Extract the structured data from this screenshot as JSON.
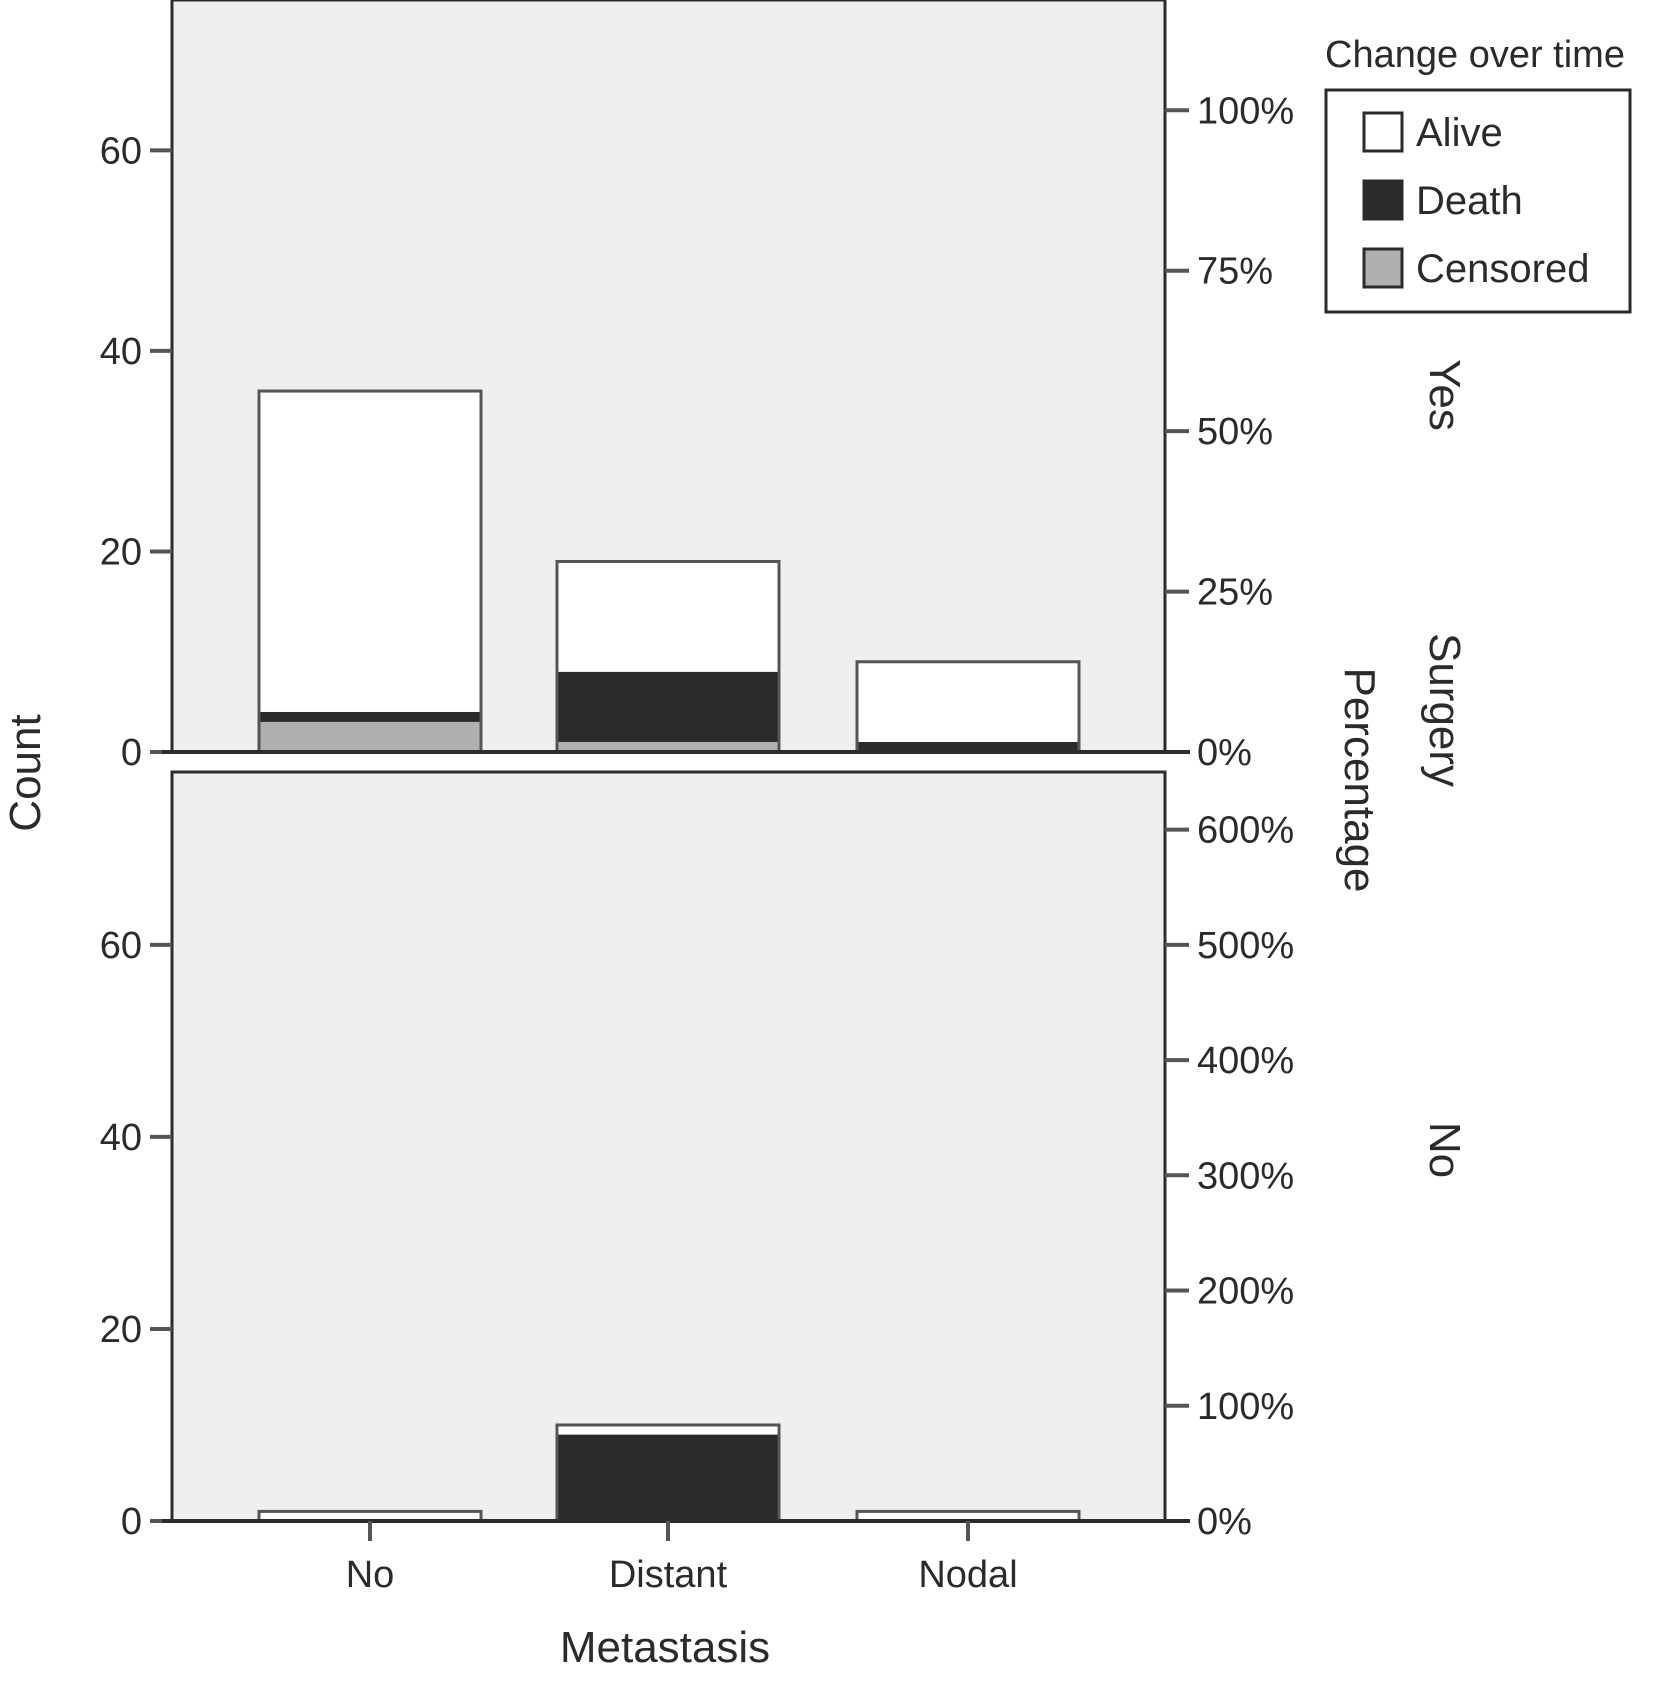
{
  "chart_data": {
    "type": "bar",
    "stacked": true,
    "xlabel": "Metastasis",
    "ylabel": "Count",
    "y2label": "Percentage",
    "facet_label": "Surgery",
    "categories": [
      "No",
      "Distant",
      "Nodal"
    ],
    "legend": {
      "title": "Change over time",
      "position": "top-right",
      "entries": [
        {
          "name": "Alive",
          "color": "#ffffff"
        },
        {
          "name": "Death",
          "color": "#2b2b2b"
        },
        {
          "name": "Censored",
          "color": "#b0b0b0"
        }
      ]
    },
    "panels": [
      {
        "facet": "Yes",
        "ylim": [
          0,
          75
        ],
        "yticks": [
          0,
          20,
          40,
          60
        ],
        "y2ticks": [
          {
            "label": "0%",
            "count": 0
          },
          {
            "label": "25%",
            "count": 16
          },
          {
            "label": "50%",
            "count": 32
          },
          {
            "label": "75%",
            "count": 48
          },
          {
            "label": "100%",
            "count": 64
          }
        ],
        "series": [
          {
            "name": "Censored",
            "values": [
              3,
              1,
              0
            ]
          },
          {
            "name": "Death",
            "values": [
              1,
              7,
              1
            ]
          },
          {
            "name": "Alive",
            "values": [
              32,
              11,
              8
            ]
          }
        ]
      },
      {
        "facet": "No",
        "ylim": [
          0,
          78
        ],
        "yticks": [
          0,
          20,
          40,
          60
        ],
        "y2ticks": [
          {
            "label": "0%",
            "count": 0
          },
          {
            "label": "100%",
            "count": 12
          },
          {
            "label": "200%",
            "count": 24
          },
          {
            "label": "300%",
            "count": 36
          },
          {
            "label": "400%",
            "count": 48
          },
          {
            "label": "500%",
            "count": 60
          },
          {
            "label": "600%",
            "count": 72
          }
        ],
        "series": [
          {
            "name": "Censored",
            "values": [
              0,
              0,
              0
            ]
          },
          {
            "name": "Death",
            "values": [
              0,
              9,
              0
            ]
          },
          {
            "name": "Alive",
            "values": [
              1,
              1,
              1
            ]
          }
        ]
      }
    ],
    "colors": {
      "panel_bg": "#efefef",
      "axis": "#2b2b2b",
      "bar_outline": "#555555"
    }
  }
}
